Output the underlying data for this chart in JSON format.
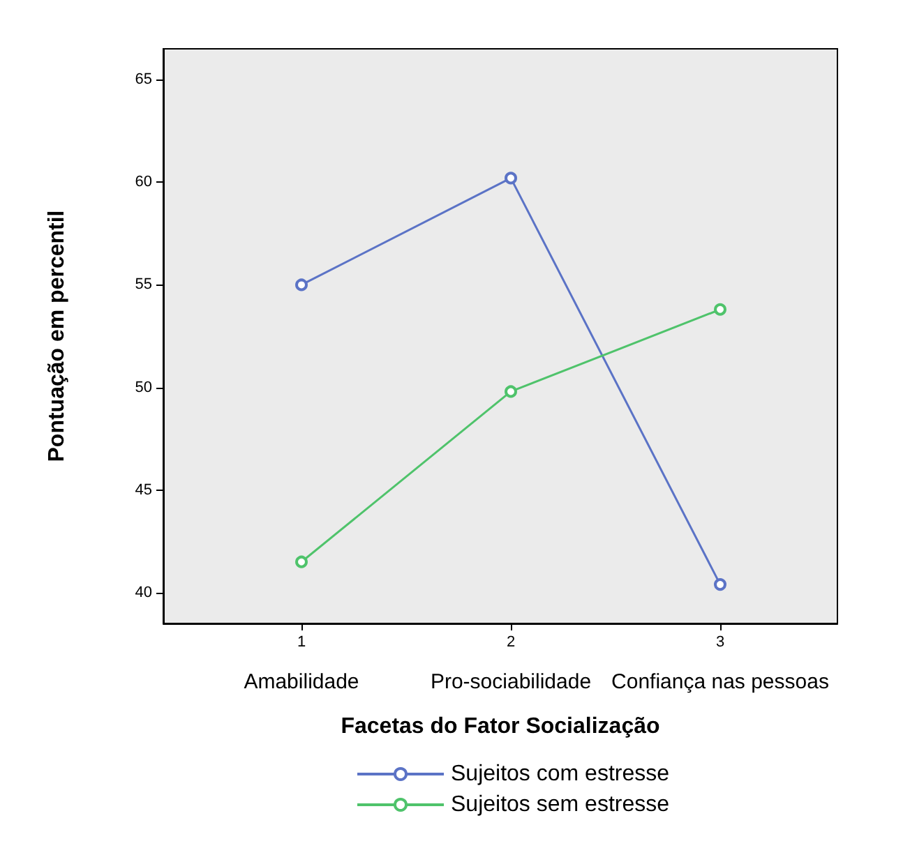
{
  "chart_data": {
    "type": "line",
    "xlabel": "Facetas do Fator Socialização",
    "ylabel": "Pontuação em percentil",
    "x": [
      1,
      2,
      3
    ],
    "xlim": [
      0.34,
      3.56
    ],
    "xticks": [
      1,
      2,
      3
    ],
    "ylim": [
      38.5,
      66.5
    ],
    "yticks": [
      40,
      45,
      50,
      55,
      60,
      65
    ],
    "series": [
      {
        "name": "Sujeitos com estresse",
        "color": "#5b73c6",
        "values": [
          55.0,
          60.2,
          40.4
        ]
      },
      {
        "name": "Sujeitos sem estresse",
        "color": "#4fc36b",
        "values": [
          41.5,
          49.8,
          53.8
        ]
      }
    ],
    "annotations": [
      "Amabilidade",
      "Pro-sociabilidade",
      "Confiança nas pessoas"
    ],
    "marker": "circle",
    "line_style": "solid",
    "legend": "bottom",
    "grid": false
  }
}
